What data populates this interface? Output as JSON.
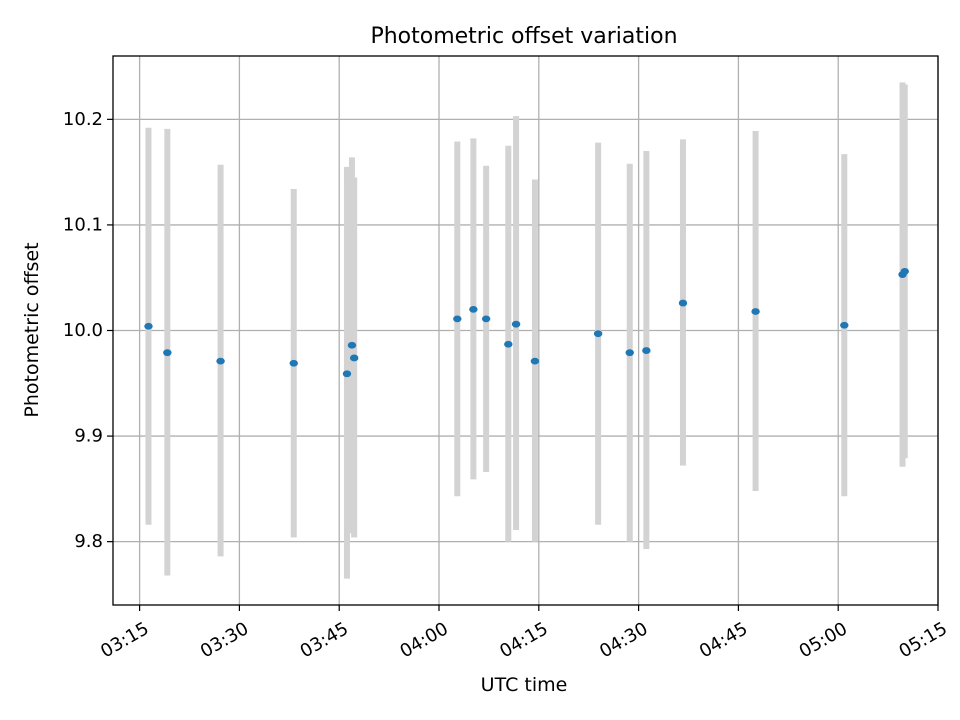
{
  "chart_data": {
    "type": "scatter",
    "title": "Photometric offset variation",
    "xlabel": "UTC time",
    "ylabel": "Photometric offset",
    "x_ticks": [
      "03:15",
      "03:30",
      "03:45",
      "04:00",
      "04:15",
      "04:30",
      "04:45",
      "05:00",
      "05:15"
    ],
    "y_ticks": [
      "9.8",
      "9.9",
      "10.0",
      "10.1",
      "10.2"
    ],
    "xlim": [
      "03:11",
      "05:15"
    ],
    "ylim": [
      9.74,
      10.26
    ],
    "grid": true,
    "colors": {
      "point": "#1f77b4",
      "errorbar": "#d3d3d3",
      "grid": "#b0b0b0"
    },
    "points": [
      {
        "time": "03:16:20",
        "y": 10.004,
        "ylow": 9.816,
        "yhigh": 10.192
      },
      {
        "time": "03:19:10",
        "y": 9.979,
        "ylow": 9.768,
        "yhigh": 10.191
      },
      {
        "time": "03:27:10",
        "y": 9.971,
        "ylow": 9.786,
        "yhigh": 10.157
      },
      {
        "time": "03:38:10",
        "y": 9.969,
        "ylow": 9.804,
        "yhigh": 10.134
      },
      {
        "time": "03:46:10",
        "y": 9.959,
        "ylow": 9.765,
        "yhigh": 10.155
      },
      {
        "time": "03:46:55",
        "y": 9.986,
        "ylow": 9.808,
        "yhigh": 10.164
      },
      {
        "time": "03:47:15",
        "y": 9.974,
        "ylow": 9.804,
        "yhigh": 10.145
      },
      {
        "time": "04:02:45",
        "y": 10.011,
        "ylow": 9.843,
        "yhigh": 10.179
      },
      {
        "time": "04:05:10",
        "y": 10.02,
        "ylow": 9.859,
        "yhigh": 10.182
      },
      {
        "time": "04:07:05",
        "y": 10.011,
        "ylow": 9.866,
        "yhigh": 10.156
      },
      {
        "time": "04:10:25",
        "y": 9.987,
        "ylow": 9.8,
        "yhigh": 10.175
      },
      {
        "time": "04:11:35",
        "y": 10.006,
        "ylow": 9.811,
        "yhigh": 10.203
      },
      {
        "time": "04:14:25",
        "y": 9.971,
        "ylow": 9.8,
        "yhigh": 10.143
      },
      {
        "time": "04:23:55",
        "y": 9.997,
        "ylow": 9.816,
        "yhigh": 10.178
      },
      {
        "time": "04:28:40",
        "y": 9.979,
        "ylow": 9.8,
        "yhigh": 10.158
      },
      {
        "time": "04:31:10",
        "y": 9.981,
        "ylow": 9.793,
        "yhigh": 10.17
      },
      {
        "time": "04:36:40",
        "y": 10.026,
        "ylow": 9.872,
        "yhigh": 10.181
      },
      {
        "time": "04:47:35",
        "y": 10.018,
        "ylow": 9.848,
        "yhigh": 10.189
      },
      {
        "time": "05:00:55",
        "y": 10.005,
        "ylow": 9.843,
        "yhigh": 10.167
      },
      {
        "time": "05:09:40",
        "y": 10.053,
        "ylow": 9.871,
        "yhigh": 10.235
      },
      {
        "time": "05:10:00",
        "y": 10.056,
        "ylow": 9.879,
        "yhigh": 10.233
      }
    ]
  }
}
